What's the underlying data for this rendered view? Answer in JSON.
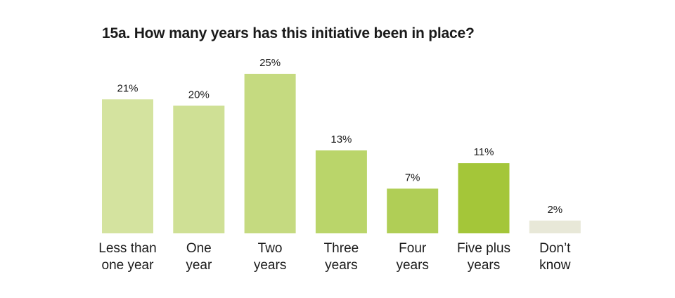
{
  "chart_data": {
    "type": "bar",
    "title": "15a. How many years has this initiative been in place?",
    "categories": [
      [
        "Less than",
        "one year"
      ],
      [
        "One",
        "year"
      ],
      [
        "Two",
        "years"
      ],
      [
        "Three",
        "years"
      ],
      [
        "Four",
        "years"
      ],
      [
        "Five plus",
        "years"
      ],
      [
        "Don’t",
        "know"
      ]
    ],
    "values": [
      21,
      20,
      25,
      13,
      7,
      11,
      2
    ],
    "value_labels": [
      "21%",
      "20%",
      "25%",
      "13%",
      "7%",
      "11%",
      "2%"
    ],
    "colors": [
      "#d4e39f",
      "#cfe095",
      "#c5da80",
      "#bad56a",
      "#b0ce56",
      "#a4c639",
      "#e8e8d8"
    ],
    "xlabel": "",
    "ylabel": "",
    "ylim": [
      0,
      25
    ],
    "grid": false
  }
}
